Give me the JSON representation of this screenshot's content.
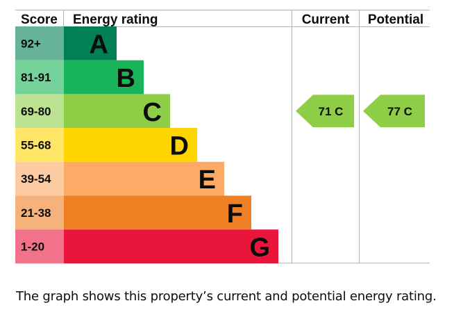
{
  "headers": {
    "score": "Score",
    "energy_rating": "Energy rating",
    "current": "Current",
    "potential": "Potential"
  },
  "chart_data": {
    "type": "bar",
    "bands": [
      {
        "letter": "A",
        "score_range": "92+",
        "color": "#008054",
        "score_color": "#66b397"
      },
      {
        "letter": "B",
        "score_range": "81-91",
        "color": "#19b459",
        "score_color": "#75d29b"
      },
      {
        "letter": "C",
        "score_range": "69-80",
        "color": "#8dce46",
        "score_color": "#bbe290"
      },
      {
        "letter": "D",
        "score_range": "55-68",
        "color": "#ffd500",
        "score_color": "#ffe666"
      },
      {
        "letter": "E",
        "score_range": "39-54",
        "color": "#fcaa65",
        "score_color": "#fdcca3"
      },
      {
        "letter": "F",
        "score_range": "21-38",
        "color": "#ef8023",
        "score_color": "#f5b37b"
      },
      {
        "letter": "G",
        "score_range": "1-20",
        "color": "#e9153b",
        "score_color": "#f27389"
      }
    ],
    "current": {
      "value": 71,
      "band": "C",
      "label": "71 C",
      "color": "#8dce46"
    },
    "potential": {
      "value": 77,
      "band": "C",
      "label": "77 C",
      "color": "#8dce46"
    }
  },
  "caption": "The graph shows this property’s current and potential energy rating."
}
